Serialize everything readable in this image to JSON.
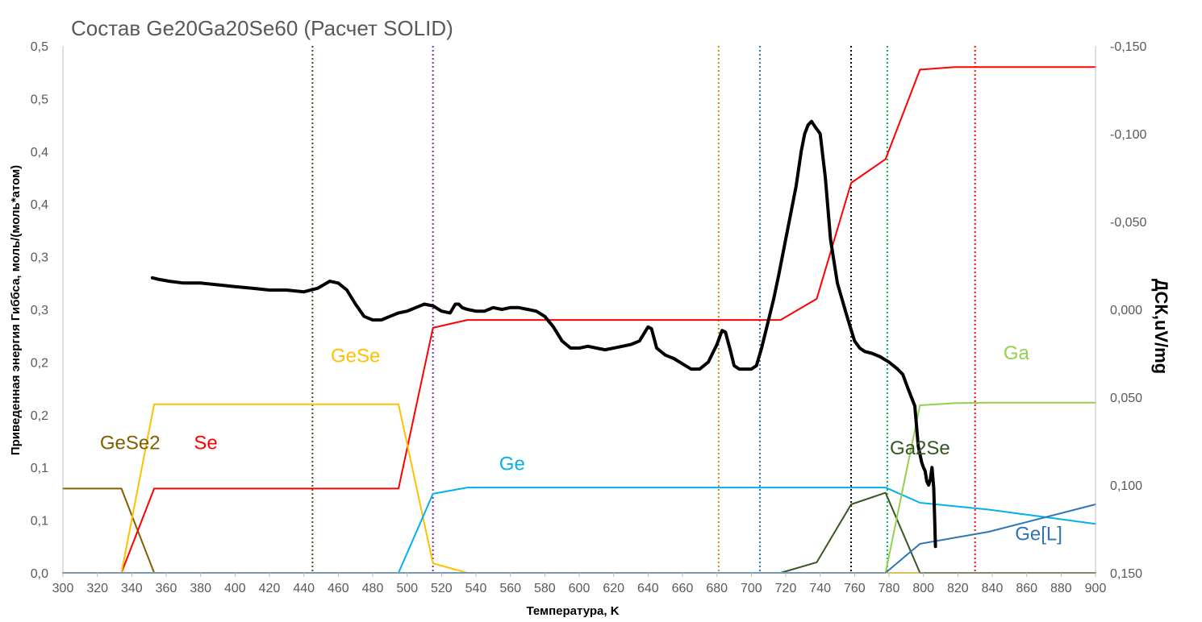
{
  "chart_data": {
    "type": "line",
    "title": "Состав Ge20Ga20Se60 (Расчет SOLID)",
    "xlabel": "Температура, K",
    "ylabel": "Приведенная энергия Гиббса, моль/(моль*атом)",
    "y2label": "ДСК,uV/mg",
    "xlim": [
      300,
      900
    ],
    "ylim": [
      0,
      1
    ],
    "y2lim": [
      -0.15,
      0.15
    ],
    "y2_reversed": true,
    "x_ticks": [
      "300",
      "320",
      "340",
      "360",
      "380",
      "400",
      "420",
      "440",
      "460",
      "480",
      "500",
      "520",
      "540",
      "560",
      "580",
      "600",
      "620",
      "640",
      "660",
      "680",
      "700",
      "720",
      "740",
      "760",
      "780",
      "800",
      "820",
      "840",
      "860",
      "880",
      "900"
    ],
    "y_ticks": [
      "0,0",
      "0,1",
      "0,1",
      "0,2",
      "0,2",
      "0,3",
      "0,3",
      "0,4",
      "0,4",
      "0,5",
      "0,5"
    ],
    "y2_ticks": [
      "-0,150",
      "-0,100",
      "-0,050",
      "0,000",
      "0,050",
      "0,100",
      "0,150"
    ],
    "grid": false,
    "legend": "none",
    "series": [
      {
        "name": "GeSe2",
        "color": "#7f6000",
        "width": 2,
        "x": [
          300,
          334,
          353,
          900
        ],
        "y": [
          0.16,
          0.16,
          0,
          0
        ]
      },
      {
        "name": "Se",
        "color": "#ff0000",
        "width": 2,
        "x": [
          300,
          334,
          353,
          495,
          515,
          535,
          717,
          738,
          758,
          778,
          798,
          818,
          900
        ],
        "y": [
          0,
          0,
          0.16,
          0.16,
          0.465,
          0.48,
          0.48,
          0.52,
          0.74,
          0.785,
          0.955,
          0.96,
          0.96
        ]
      },
      {
        "name": "GeSe",
        "color": "#ffc000",
        "width": 2,
        "x": [
          300,
          334,
          353,
          495,
          515,
          535,
          900
        ],
        "y": [
          0,
          0,
          0.32,
          0.32,
          0.018,
          0,
          0
        ]
      },
      {
        "name": "Ge",
        "color": "#00b0f0",
        "width": 2,
        "x": [
          300,
          495,
          515,
          535,
          778,
          798,
          838,
          900
        ],
        "y": [
          0,
          0,
          0.15,
          0.162,
          0.162,
          0.133,
          0.12,
          0.093
        ]
      },
      {
        "name": "Ga2Se",
        "color": "#375623",
        "width": 2,
        "x": [
          300,
          717,
          738,
          758,
          778,
          798,
          900
        ],
        "y": [
          0,
          0,
          0.02,
          0.13,
          0.152,
          0,
          0
        ]
      },
      {
        "name": "Ga",
        "color": "#92d050",
        "width": 2,
        "x": [
          300,
          778,
          798,
          818,
          838,
          900
        ],
        "y": [
          0,
          0,
          0.318,
          0.322,
          0.323,
          0.323
        ]
      },
      {
        "name": "Ge[L]",
        "color": "#2e75b6",
        "width": 2,
        "x": [
          300,
          778,
          798,
          838,
          900
        ],
        "y": [
          0,
          0,
          0.055,
          0.078,
          0.13
        ]
      },
      {
        "name": "DSC",
        "axis": "right",
        "color": "#000000",
        "width": 4,
        "x": [
          352,
          356,
          362,
          370,
          380,
          390,
          400,
          410,
          420,
          430,
          440,
          448,
          455,
          460,
          465,
          470,
          475,
          480,
          485,
          490,
          495,
          500,
          505,
          510,
          515,
          520,
          525,
          528,
          530,
          532,
          535,
          540,
          545,
          550,
          555,
          560,
          565,
          570,
          575,
          580,
          585,
          590,
          595,
          600,
          605,
          610,
          615,
          620,
          625,
          630,
          635,
          640,
          642,
          645,
          650,
          655,
          660,
          665,
          670,
          675,
          680,
          683,
          685,
          688,
          690,
          693,
          696,
          700,
          703,
          706,
          708,
          710,
          713,
          716,
          720,
          723,
          726,
          729,
          731,
          733,
          735,
          737,
          740,
          743,
          746,
          750,
          755,
          760,
          763,
          766,
          770,
          775,
          780,
          785,
          788,
          791,
          795,
          797,
          799,
          800,
          801,
          802,
          803,
          804,
          805,
          806,
          807
        ],
        "y": [
          -0.018,
          -0.017,
          -0.016,
          -0.015,
          -0.015,
          -0.014,
          -0.013,
          -0.012,
          -0.011,
          -0.011,
          -0.01,
          -0.012,
          -0.016,
          -0.015,
          -0.011,
          -0.003,
          0.004,
          0.006,
          0.006,
          0.004,
          0.002,
          0.001,
          -0.001,
          -0.003,
          -0.002,
          0.001,
          0.002,
          -0.003,
          -0.003,
          -0.001,
          0.0,
          0.001,
          0.001,
          -0.001,
          0.0,
          -0.001,
          -0.001,
          0.0,
          0.001,
          0.004,
          0.01,
          0.018,
          0.022,
          0.022,
          0.021,
          0.022,
          0.023,
          0.022,
          0.021,
          0.02,
          0.018,
          0.01,
          0.011,
          0.022,
          0.026,
          0.028,
          0.031,
          0.034,
          0.034,
          0.03,
          0.02,
          0.012,
          0.013,
          0.024,
          0.032,
          0.034,
          0.034,
          0.034,
          0.032,
          0.022,
          0.014,
          0.006,
          -0.006,
          -0.02,
          -0.04,
          -0.055,
          -0.07,
          -0.09,
          -0.1,
          -0.105,
          -0.107,
          -0.104,
          -0.1,
          -0.075,
          -0.04,
          -0.015,
          0.002,
          0.018,
          0.022,
          0.024,
          0.025,
          0.027,
          0.03,
          0.034,
          0.037,
          0.045,
          0.055,
          0.078,
          0.087,
          0.09,
          0.092,
          0.098,
          0.1,
          0.097,
          0.09,
          0.102,
          0.135
        ]
      }
    ],
    "annotations": [
      {
        "text": "GeSe2",
        "color": "#7f6000",
        "x": 339,
        "y": 0.235
      },
      {
        "text": "Se",
        "color": "#ff0000",
        "x": 383,
        "y": 0.235
      },
      {
        "text": "GeSe",
        "color": "#ffc000",
        "x": 470,
        "y": 0.4
      },
      {
        "text": "Ge",
        "color": "#00b0f0",
        "x": 561,
        "y": 0.195
      },
      {
        "text": "Ga2Se",
        "color": "#375623",
        "x": 798,
        "y": 0.225
      },
      {
        "text": "Ga",
        "color": "#92d050",
        "x": 854,
        "y": 0.405
      },
      {
        "text": "Ge[L]",
        "color": "#2e75b6",
        "x": 867,
        "y": 0.062
      }
    ],
    "vlines": [
      {
        "x": 445,
        "color": "#375623"
      },
      {
        "x": 515,
        "color": "#7030a0"
      },
      {
        "x": 681,
        "color": "#bf9000"
      },
      {
        "x": 705,
        "color": "#2e75b6"
      },
      {
        "x": 758,
        "color": "#000000"
      },
      {
        "x": 779,
        "color": "#00b050"
      },
      {
        "x": 830,
        "color": "#ff0000"
      }
    ]
  }
}
